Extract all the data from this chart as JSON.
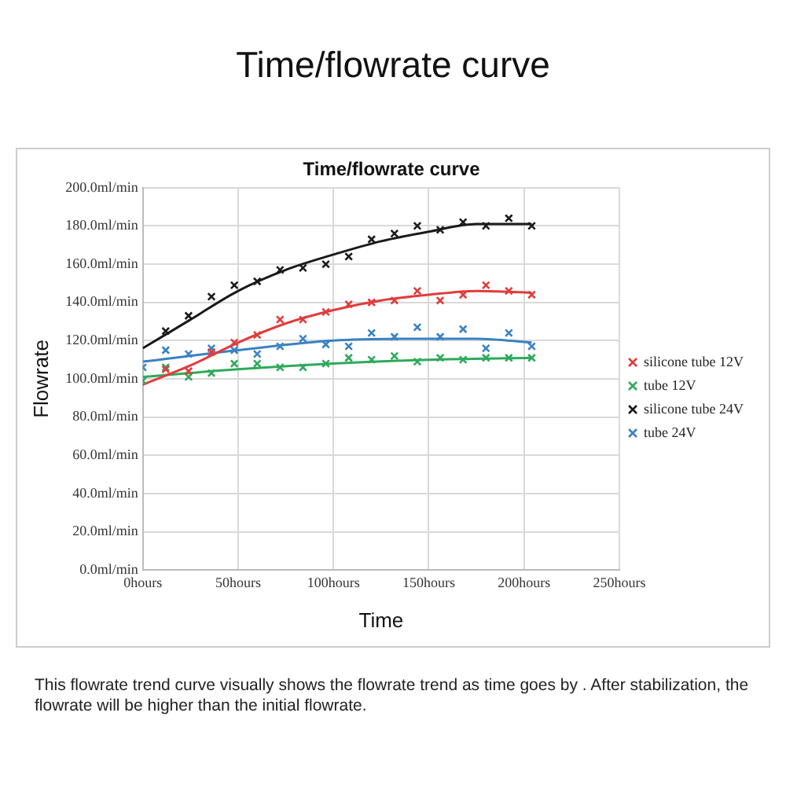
{
  "chart_data": {
    "type": "scatter",
    "title": "Time/flowrate curve",
    "subtitle": "Time/flowrate curve",
    "xlabel": "Time",
    "ylabel": "Flowrate",
    "annotations": [
      "This flowrate trend curve visually shows the flowrate trend as time goes by . After stabilization, the flowrate will be higher than the initial flowrate."
    ],
    "x": [
      0,
      12,
      24,
      36,
      48,
      60,
      72,
      84,
      96,
      108,
      120,
      132,
      144,
      156,
      168,
      180,
      192,
      204
    ],
    "series": [
      {
        "name": "silicone tube 12V",
        "color": "#e03c3c",
        "values": [
          null,
          105,
          104,
          114,
          119,
          123,
          131,
          131,
          135,
          139,
          140,
          141,
          146,
          141,
          144,
          149,
          146,
          144
        ]
      },
      {
        "name": "tube 12V",
        "color": "#2eaa5a",
        "values": [
          99,
          106,
          101,
          103,
          108,
          108,
          106,
          106,
          108,
          111,
          110,
          112,
          109,
          111,
          110,
          111,
          111,
          111
        ]
      },
      {
        "name": "silicone tube 24V",
        "color": "#1a1a1a",
        "values": [
          null,
          125,
          133,
          143,
          149,
          151,
          157,
          158,
          160,
          164,
          173,
          176,
          180,
          178,
          182,
          180,
          184,
          180
        ]
      },
      {
        "name": "tube 24V",
        "color": "#3a82c4",
        "values": [
          106,
          115,
          113,
          116,
          115,
          113,
          117,
          121,
          118,
          117,
          124,
          122,
          127,
          122,
          126,
          116,
          124,
          117
        ]
      },
      {
        "type": "line",
        "marker": "none",
        "color": "#e03c3c",
        "x": [
          0,
          25,
          50,
          75,
          100,
          125,
          150,
          175,
          204
        ],
        "values": [
          97,
          107,
          119,
          129,
          136,
          141,
          144,
          146,
          145
        ]
      },
      {
        "type": "line",
        "marker": "none",
        "color": "#2eaa5a",
        "x": [
          0,
          50,
          100,
          150,
          204
        ],
        "values": [
          101,
          105,
          108,
          110,
          111
        ]
      },
      {
        "type": "line",
        "marker": "none",
        "color": "#1a1a1a",
        "x": [
          0,
          25,
          50,
          75,
          100,
          125,
          150,
          175,
          204
        ],
        "values": [
          116,
          131,
          146,
          157,
          165,
          172,
          177,
          181,
          181
        ]
      },
      {
        "type": "line",
        "marker": "none",
        "color": "#3a82c4",
        "x": [
          0,
          50,
          100,
          150,
          175,
          204
        ],
        "values": [
          109,
          115,
          120,
          121,
          121,
          119
        ]
      }
    ],
    "xlim": [
      0,
      250
    ],
    "xticks": [
      {
        "value": 0,
        "label": "0hours"
      },
      {
        "value": 50,
        "label": "50hours"
      },
      {
        "value": 100,
        "label": "100hours"
      },
      {
        "value": 150,
        "label": "150hours"
      },
      {
        "value": 200,
        "label": "200hours"
      },
      {
        "value": 250,
        "label": "250hours"
      }
    ],
    "ylim": [
      0,
      200
    ],
    "yticks": [
      {
        "value": 0,
        "label": "0.0ml/min"
      },
      {
        "value": 20,
        "label": "20.0ml/min"
      },
      {
        "value": 40,
        "label": "40.0ml/min"
      },
      {
        "value": 60,
        "label": "60.0ml/min"
      },
      {
        "value": 80,
        "label": "80.0ml/min"
      },
      {
        "value": 100,
        "label": "100.0ml/min"
      },
      {
        "value": 120,
        "label": "120.0ml/min"
      },
      {
        "value": 140,
        "label": "140.0ml/min"
      },
      {
        "value": 160,
        "label": "160.0ml/min"
      },
      {
        "value": 180,
        "label": "180.0ml/min"
      },
      {
        "value": 200,
        "label": "200.0ml/min"
      }
    ],
    "grid": true,
    "legend": "right",
    "marker": "cross",
    "line_style": "solid"
  }
}
